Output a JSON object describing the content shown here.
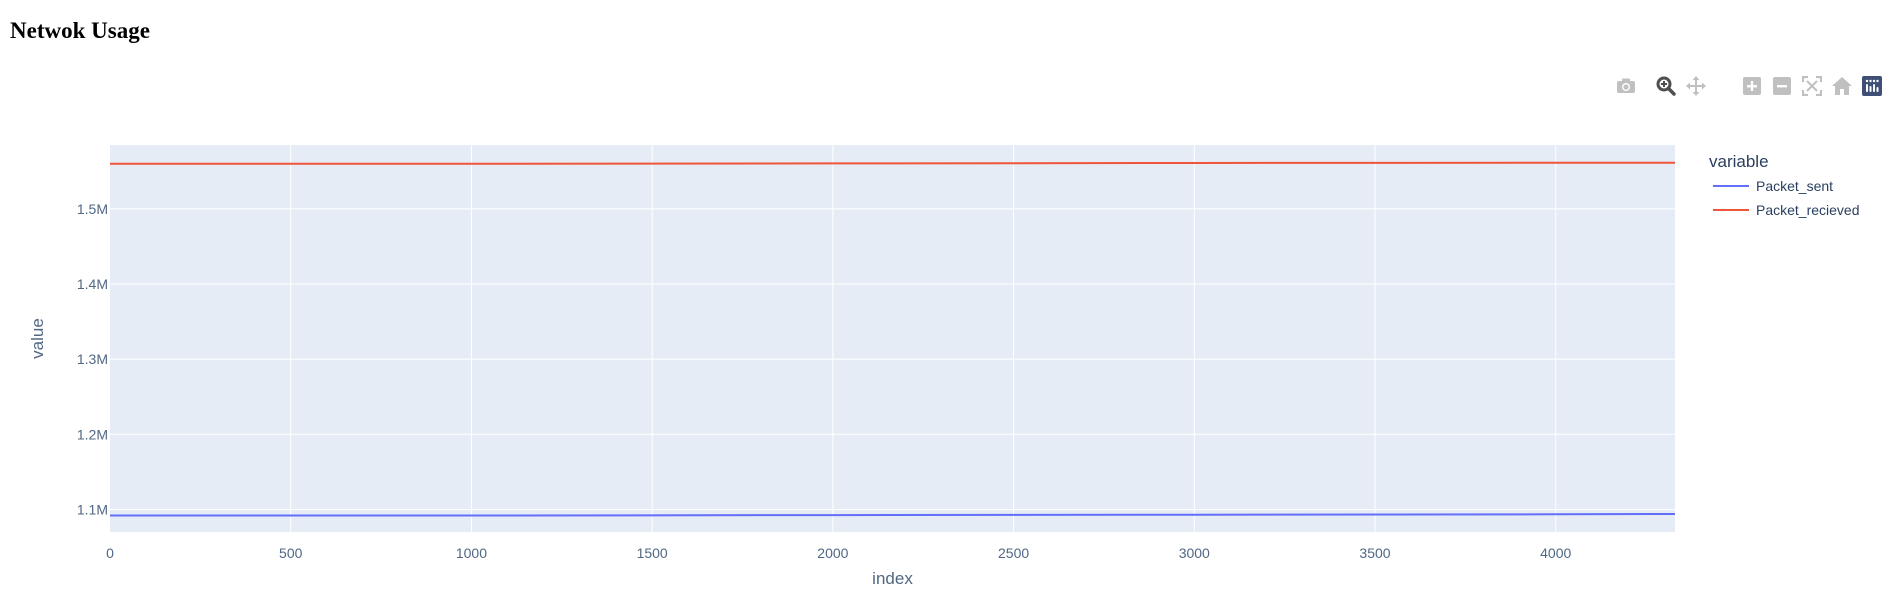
{
  "page": {
    "title": "Netwok Usage"
  },
  "modebar": {
    "buttons": [
      {
        "name": "camera-icon",
        "label": "Download plot as a png"
      },
      {
        "name": "zoom-icon",
        "label": "Zoom"
      },
      {
        "name": "pan-icon",
        "label": "Pan"
      },
      {
        "name": "zoom-in-icon",
        "label": "Zoom in"
      },
      {
        "name": "zoom-out-icon",
        "label": "Zoom out"
      },
      {
        "name": "autoscale-icon",
        "label": "Autoscale"
      },
      {
        "name": "home-icon",
        "label": "Reset axes"
      },
      {
        "name": "plotly-logo-icon",
        "label": "Produced with Plotly"
      }
    ],
    "icon_color": "#c0c0c0",
    "active_color": "#505050",
    "logo_color": "#3f4f75"
  },
  "chart_data": {
    "type": "line",
    "title": "",
    "xlabel": "index",
    "ylabel": "value",
    "xlim": [
      0,
      4330
    ],
    "ylim": [
      1070000,
      1585000
    ],
    "x_ticks": [
      0,
      500,
      1000,
      1500,
      2000,
      2500,
      3000,
      3500,
      4000
    ],
    "x_tick_labels": [
      "0",
      "500",
      "1000",
      "1500",
      "2000",
      "2500",
      "3000",
      "3500",
      "4000"
    ],
    "y_ticks": [
      1100000,
      1200000,
      1300000,
      1400000,
      1500000
    ],
    "y_tick_labels": [
      "1.1M",
      "1.2M",
      "1.3M",
      "1.4M",
      "1.5M"
    ],
    "grid": true,
    "legend": {
      "title": "variable",
      "placement": "right"
    },
    "plot_bg": "#e5ecf6",
    "series": [
      {
        "name": "Packet_sent",
        "color": "#636efa",
        "x": [
          0,
          1000,
          2000,
          3000,
          4000,
          4330
        ],
        "values": [
          1092000,
          1092000,
          1092500,
          1093000,
          1093500,
          1094000
        ]
      },
      {
        "name": "Packet_recieved",
        "color": "#ef553b",
        "x": [
          0,
          1000,
          2000,
          3000,
          4000,
          4330
        ],
        "values": [
          1560000,
          1560000,
          1560500,
          1561000,
          1561500,
          1561500
        ]
      }
    ]
  }
}
